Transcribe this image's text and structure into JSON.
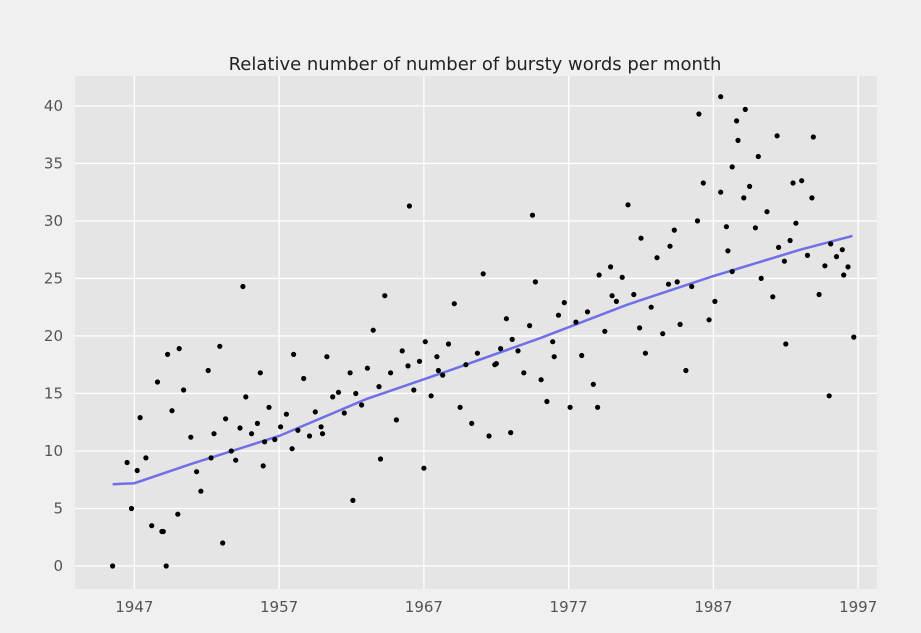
{
  "chart_data": {
    "type": "scatter",
    "title": "Relative number of number of bursty words per month",
    "xlabel": "",
    "ylabel": "",
    "xlim": [
      1942.9,
      1998.3
    ],
    "ylim": [
      -2,
      42.6
    ],
    "x_ticks": [
      1947,
      1957,
      1967,
      1977,
      1987,
      1997
    ],
    "y_ticks": [
      0,
      5,
      10,
      15,
      20,
      25,
      30,
      35,
      40
    ],
    "grid": true,
    "legend": "none",
    "colors": {
      "background": "#f0f0f0",
      "plot_area": "#e5e5e5",
      "grid": "#ffffff",
      "points": "#000000",
      "trend": "#6f6fe6"
    },
    "trend_line": {
      "x": [
        1945.5,
        1947.0,
        1951.0,
        1957.0,
        1963.0,
        1969.0,
        1975.0,
        1981.0,
        1987.0,
        1993.0,
        1996.6
      ],
      "y": [
        7.1,
        7.2,
        8.9,
        11.3,
        14.5,
        17.1,
        19.8,
        22.7,
        25.2,
        27.5,
        28.7
      ]
    },
    "series": [
      {
        "x": [
          1945.5,
          1946.5,
          1946.8,
          1947.2,
          1947.4,
          1947.8,
          1948.2,
          1948.6,
          1949.0,
          1949.3,
          1949.6,
          1950.0,
          1950.4,
          1950.9,
          1951.3,
          1951.6,
          1952.1,
          1952.5,
          1952.9,
          1953.3,
          1953.7,
          1954.0,
          1954.3,
          1954.7,
          1955.1,
          1955.5,
          1955.9,
          1956.3,
          1956.7,
          1957.1,
          1957.5,
          1957.9,
          1958.3,
          1958.7,
          1959.1,
          1959.5,
          1959.9,
          1960.3,
          1960.7,
          1961.1,
          1961.5,
          1961.9,
          1962.3,
          1962.7,
          1963.1,
          1963.5,
          1963.9,
          1964.3,
          1964.7,
          1965.1,
          1965.5,
          1965.9,
          1966.3,
          1966.7,
          1967.1,
          1967.5,
          1967.9,
          1968.3,
          1968.7,
          1969.1,
          1969.5,
          1969.9,
          1970.3,
          1970.7,
          1971.1,
          1971.5,
          1971.9,
          1972.3,
          1972.7,
          1973.1,
          1973.5,
          1973.9,
          1974.3,
          1974.7,
          1975.1,
          1975.5,
          1975.9,
          1976.3,
          1976.7,
          1977.1,
          1977.5,
          1977.9,
          1978.3,
          1978.7,
          1979.1,
          1979.5,
          1979.9,
          1980.3,
          1980.7,
          1981.1,
          1981.5,
          1981.9,
          1982.3,
          1982.7,
          1983.1,
          1983.5,
          1983.9,
          1984.3,
          1984.7,
          1985.1,
          1985.5,
          1985.9,
          1986.3,
          1986.7,
          1987.1,
          1987.5,
          1987.9,
          1988.3,
          1988.7,
          1989.1,
          1989.5,
          1989.9,
          1990.3,
          1990.7,
          1991.1,
          1991.5,
          1991.9,
          1992.3,
          1992.7,
          1993.1,
          1993.5,
          1993.9,
          1994.3,
          1994.7,
          1995.1,
          1995.5,
          1995.9,
          1996.3,
          1996.7,
          1954.5,
          1962.1,
          1966.0,
          1974.5,
          1986.0,
          1988.3,
          1988.6,
          1989.2,
          1990.1,
          1991.4,
          1993.8,
          1948.9,
          1950.1,
          1953.1,
          1956.0,
          1958.0,
          1967.0,
          1973.0,
          1979.0,
          1982.0,
          1984.5,
          1987.5,
          1992.0,
          1995.0,
          1949.2,
          1952.3,
          1955.7,
          1960.0,
          1964.0,
          1968.0,
          1972.0,
          1976.0,
          1980.0,
          1984.0,
          1988.0,
          1992.5,
          1996.0
        ],
        "y": [
          0,
          9,
          5,
          8.3,
          12.9,
          9.4,
          3.5,
          16,
          3,
          18.4,
          13.5,
          4.5,
          15.3,
          11.2,
          8.2,
          6.5,
          17,
          11.5,
          19.1,
          12.8,
          10,
          9.2,
          12,
          14.7,
          11.5,
          12.4,
          8.7,
          13.8,
          11,
          12.1,
          13.2,
          10.2,
          11.8,
          16.3,
          11.3,
          13.4,
          12.1,
          18.2,
          14.7,
          15.1,
          13.3,
          16.8,
          15,
          14,
          17.2,
          20.5,
          15.6,
          23.5,
          16.8,
          12.7,
          18.7,
          17.4,
          15.3,
          17.8,
          19.5,
          14.8,
          18.2,
          16.6,
          19.3,
          22.8,
          13.8,
          17.5,
          12.4,
          18.5,
          25.4,
          11.3,
          17.5,
          18.9,
          21.5,
          19.7,
          18.7,
          16.8,
          20.9,
          24.7,
          16.2,
          14.3,
          19.5,
          21.8,
          22.9,
          13.8,
          21.2,
          18.3,
          22.1,
          15.8,
          25.3,
          20.4,
          26,
          23,
          25.1,
          31.4,
          23.6,
          20.7,
          18.5,
          22.5,
          26.8,
          20.2,
          24.5,
          29.2,
          21,
          17,
          24.3,
          30,
          33.3,
          21.4,
          23,
          40.8,
          29.5,
          25.6,
          37,
          32,
          33,
          29.4,
          25,
          30.8,
          23.4,
          27.7,
          26.5,
          28.3,
          29.8,
          33.5,
          27,
          37.3,
          23.6,
          26.1,
          28,
          26.9,
          27.5,
          26,
          19.9,
          24.3,
          5.7,
          31.3,
          30.5,
          39.3,
          34.7,
          38.7,
          39.7,
          35.6,
          37.4,
          32,
          3,
          18.9,
          2,
          10.8,
          18.4,
          8.5,
          11.6,
          13.8,
          28.5,
          24.7,
          32.5,
          19.3,
          14.8,
          0,
          9.4,
          16.8,
          11.5,
          9.3,
          17,
          17.6,
          18.2,
          23.5,
          27.8,
          27.4,
          33.3,
          25.3
        ]
      }
    ]
  }
}
